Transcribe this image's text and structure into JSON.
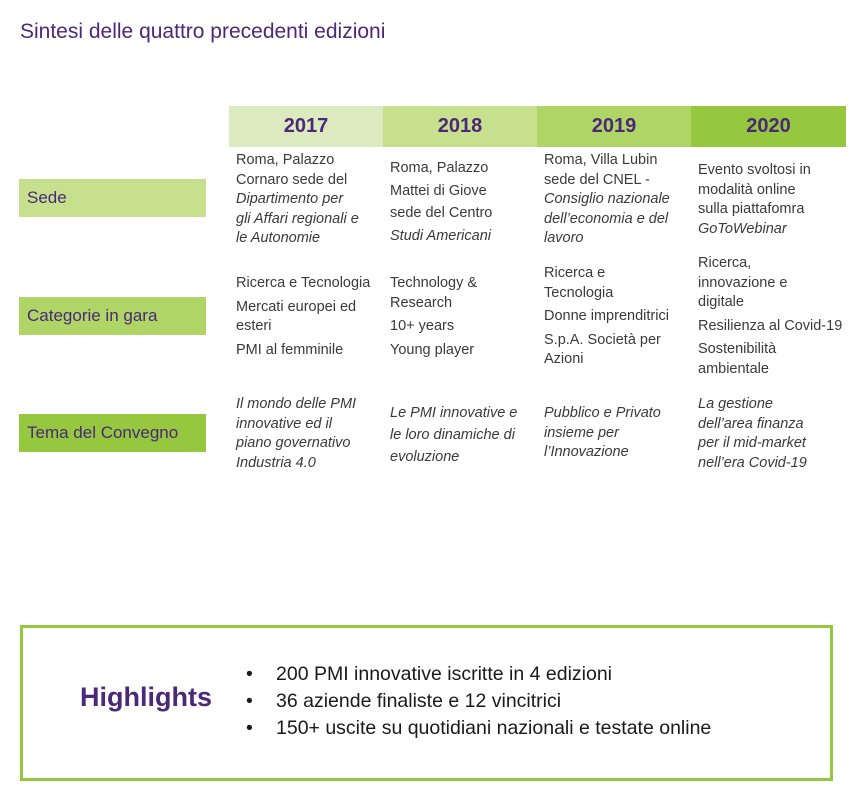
{
  "title": "Sintesi delle quattro precedenti edizioni",
  "years": [
    "2017",
    "2018",
    "2019",
    "2020"
  ],
  "rows": {
    "sede": {
      "label": "Sede",
      "cells": [
        [
          "Roma, Palazzo",
          "Cornaro  sede del",
          "Dipartimento per",
          "gli Affari regionali e",
          "le Autonomie"
        ],
        [
          "Roma, Palazzo",
          "Mattei di Giove",
          "sede del Centro",
          "Studi Americani"
        ],
        [
          "Roma, Villa Lubin",
          "sede del CNEL -",
          "Consiglio nazionale",
          "dell’economia e del",
          "lavoro"
        ],
        [
          "Evento svoltosi in",
          "modalità online",
          "sulla piattafomra",
          "GoToWebinar"
        ]
      ]
    },
    "categorie": {
      "label": "Categorie in gara",
      "cells": [
        [
          "Ricerca e Tecnologia",
          "Mercati europei ed",
          "esteri",
          "PMI al femminile"
        ],
        [
          "Technology &",
          "Research",
          "10+ years",
          "Young player"
        ],
        [
          "Ricerca e",
          "Tecnologia",
          "Donne imprenditrici",
          "S.p.A. Società per",
          "Azioni"
        ],
        [
          "Ricerca,",
          "innovazione e",
          "digitale",
          "Resilienza al Covid-19",
          "Sostenibilità",
          "ambientale"
        ]
      ]
    },
    "tema": {
      "label": "Tema del Convegno",
      "cells": [
        [
          "Il mondo delle PMI",
          "innovative ed il",
          "piano governativo",
          "Industria 4.0"
        ],
        [
          "Le PMI innovative e",
          "le loro dinamiche di",
          "evoluzione"
        ],
        [
          "Pubblico e Privato",
          "insieme per",
          "l’Innovazione"
        ],
        [
          "La gestione",
          "dell’area finanza",
          "per il mid-market",
          "nell’era Covid-19"
        ]
      ]
    }
  },
  "highlights": {
    "title": "Highlights",
    "bullet": "•",
    "items": [
      "200 PMI innovative iscritte in 4 edizioni",
      "36 aziende finaliste e 12 vincitrici",
      "150+ uscite su quotidiani nazionali e testate online"
    ]
  },
  "colors": {
    "purple": "#4b2878",
    "green_1": "#dcebbf",
    "green_2": "#c6e08d",
    "green_3": "#b0d567",
    "green_4": "#95c73f"
  }
}
